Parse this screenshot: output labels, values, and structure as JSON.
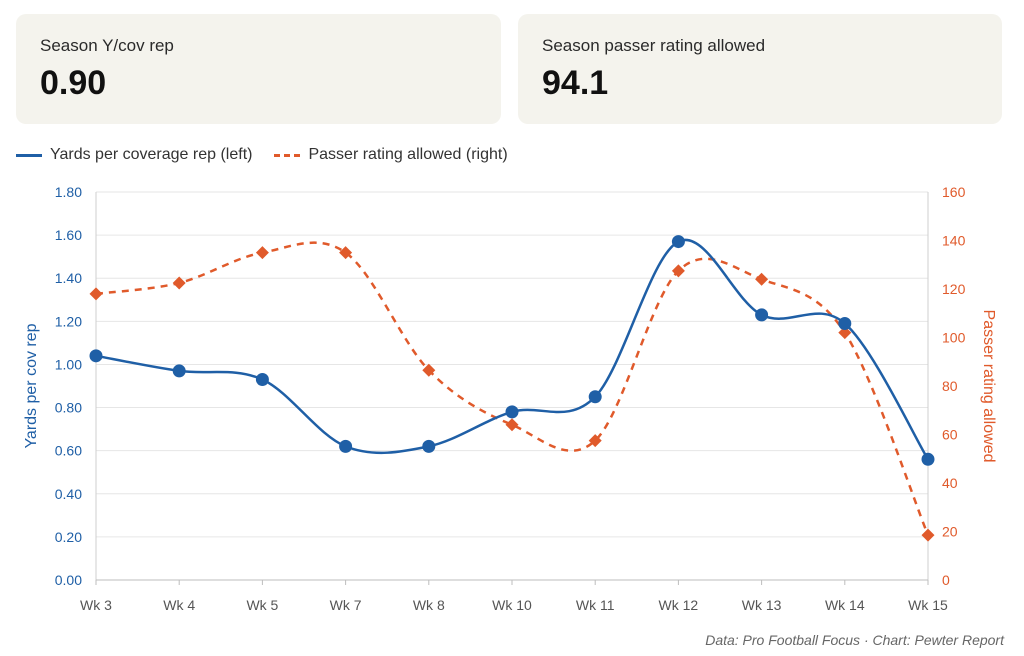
{
  "cards": [
    {
      "label": "Season Y/cov rep",
      "value": "0.90"
    },
    {
      "label": "Season passer rating allowed",
      "value": "94.1"
    }
  ],
  "legend": {
    "series1": "Yards per coverage rep (left)",
    "series2": "Passer rating allowed (right)"
  },
  "colors": {
    "series1": "#1f5fa6",
    "series2": "#e05a2b",
    "grid": "#e6e6e6"
  },
  "source": "Data: Pro Football Focus · Chart: Pewter Report",
  "chart_data": {
    "type": "line",
    "categories": [
      "Wk 3",
      "Wk 4",
      "Wk 5",
      "Wk 7",
      "Wk 8",
      "Wk 10",
      "Wk 11",
      "Wk 12",
      "Wk 13",
      "Wk 14",
      "Wk 15"
    ],
    "series": [
      {
        "name": "Yards per coverage rep (left)",
        "axis": "left",
        "style": "solid",
        "marker": "circle",
        "values": [
          1.04,
          0.97,
          0.93,
          0.62,
          0.62,
          0.78,
          0.85,
          1.57,
          1.23,
          1.19,
          0.56
        ]
      },
      {
        "name": "Passer rating allowed (right)",
        "axis": "right",
        "style": "dashed",
        "marker": "diamond",
        "values": [
          118,
          122.5,
          135,
          135,
          86.5,
          64,
          57.5,
          127.5,
          124,
          102,
          18.5
        ]
      }
    ],
    "ylabel_left": "Yards per cov rep",
    "ylabel_right": "Passer rating allowed",
    "ylim_left": [
      0,
      1.8
    ],
    "ylim_right": [
      0,
      160
    ],
    "yticks_left": [
      "0.00",
      "0.20",
      "0.40",
      "0.60",
      "0.80",
      "1.00",
      "1.20",
      "1.40",
      "1.60",
      "1.80"
    ],
    "yticks_right": [
      "0",
      "20",
      "40",
      "60",
      "80",
      "100",
      "120",
      "140",
      "160"
    ],
    "grid": true,
    "legend_position": "top-left"
  }
}
